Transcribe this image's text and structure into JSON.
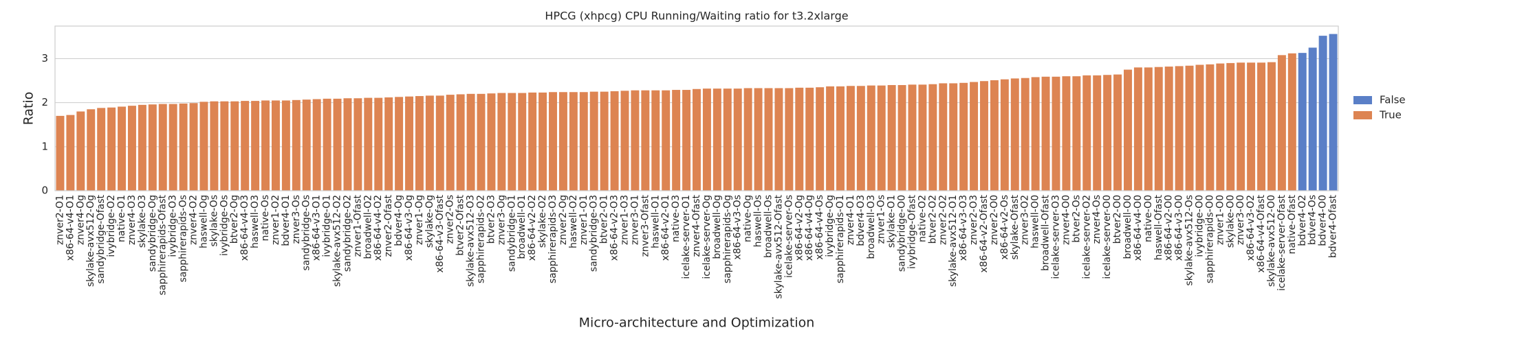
{
  "chart_data": {
    "type": "bar",
    "title": "HPCG (xhpcg) CPU Running/Waiting ratio for t3.2xlarge",
    "x_label": "Micro-architecture and Optimization",
    "y_label": "Ratio",
    "categories": [
      "znver2-O1",
      "x86-64-v4-O1",
      "znver4-Og",
      "skylake-avx512-Og",
      "sandybridge-Ofast",
      "ivybridge-O2",
      "native-O1",
      "znver4-O3",
      "skylake-O3",
      "sandybridge-Og",
      "sapphirerapids-Ofast",
      "ivybridge-O3",
      "sapphirerapids-Os",
      "znver4-O2",
      "haswell-Og",
      "skylake-Os",
      "ivybridge-Os",
      "btver2-Og",
      "x86-64-v4-O3",
      "haswell-O3",
      "native-Os",
      "znver1-O2",
      "bdver4-O1",
      "znver3-Os",
      "sandybridge-Os",
      "x86-64-v3-O1",
      "ivybridge-O1",
      "skylake-avx512-O2",
      "sandybridge-O2",
      "znver1-Ofast",
      "broadwell-O2",
      "x86-64-v4-O2",
      "znver2-Ofast",
      "bdver4-Og",
      "x86-64-v3-Og",
      "znver1-Og",
      "skylake-Og",
      "x86-64-v3-Ofast",
      "znver2-Os",
      "btver2-Ofast",
      "skylake-avx512-O3",
      "sapphirerapids-O2",
      "btver2-O3",
      "znver3-Og",
      "sandybridge-O1",
      "broadwell-O1",
      "x86-64-v2-O2",
      "skylake-O2",
      "sapphirerapids-O3",
      "znver2-Og",
      "haswell-O2",
      "znver1-O1",
      "sandybridge-O3",
      "btver2-O1",
      "x86-64-v2-O3",
      "znver1-O3",
      "znver3-O1",
      "znver3-Ofast",
      "haswell-O1",
      "x86-64-v2-O1",
      "native-O3",
      "icelake-server-O1",
      "znver4-Ofast",
      "icelake-server-Og",
      "broadwell-Og",
      "sapphirerapids-Og",
      "x86-64-v3-Os",
      "native-Og",
      "haswell-Os",
      "broadwell-Os",
      "skylake-avx512-Ofast",
      "icelake-server-Os",
      "x86-64-v2-Og",
      "x86-64-v4-Og",
      "x86-64-v4-Os",
      "ivybridge-Og",
      "sapphirerapids-O1",
      "znver4-O1",
      "bdver4-O3",
      "broadwell-O3",
      "znver1-Os",
      "skylake-O1",
      "sandybridge-O0",
      "ivybridge-Ofast",
      "native-O2",
      "btver2-O2",
      "znver2-O2",
      "skylake-avx512-O1",
      "x86-64-v3-O3",
      "znver2-O3",
      "x86-64-v2-Ofast",
      "znver2-O0",
      "x86-64-v2-Os",
      "skylake-Ofast",
      "znver3-O2",
      "haswell-O0",
      "broadwell-Ofast",
      "icelake-server-O3",
      "znver4-O0",
      "btver2-Os",
      "icelake-server-O2",
      "znver4-Os",
      "icelake-server-O0",
      "btver2-O0",
      "broadwell-O0",
      "x86-64-v4-O0",
      "native-O0",
      "haswell-Ofast",
      "x86-64-v2-O0",
      "x86-64-v3-O0",
      "skylake-avx512-Os",
      "ivybridge-O0",
      "sapphirerapids-O0",
      "znver1-O0",
      "skylake-O0",
      "znver3-O0",
      "x86-64-v3-O2",
      "x86-64-v4-Ofast",
      "skylake-avx512-O0",
      "icelake-server-Ofast",
      "native-Ofast",
      "bdver4-O2",
      "bdver4-Os",
      "bdver4-O0",
      "bdver4-Ofast"
    ],
    "series": [
      {
        "name": "False",
        "color": "#5a7fc7",
        "values": [
          null,
          null,
          null,
          null,
          null,
          null,
          null,
          null,
          null,
          null,
          null,
          null,
          null,
          null,
          null,
          null,
          null,
          null,
          null,
          null,
          null,
          null,
          null,
          null,
          null,
          null,
          null,
          null,
          null,
          null,
          null,
          null,
          null,
          null,
          null,
          null,
          null,
          null,
          null,
          null,
          null,
          null,
          null,
          null,
          null,
          null,
          null,
          null,
          null,
          null,
          null,
          null,
          null,
          null,
          null,
          null,
          null,
          null,
          null,
          null,
          null,
          null,
          null,
          null,
          null,
          null,
          null,
          null,
          null,
          null,
          null,
          null,
          null,
          null,
          null,
          null,
          null,
          null,
          null,
          null,
          null,
          null,
          null,
          null,
          null,
          null,
          null,
          null,
          null,
          null,
          null,
          null,
          null,
          null,
          null,
          null,
          null,
          null,
          null,
          null,
          null,
          null,
          null,
          null,
          null,
          null,
          null,
          null,
          null,
          null,
          null,
          null,
          null,
          null,
          null,
          null,
          null,
          null,
          null,
          null,
          null,
          3.13,
          3.25,
          3.52,
          3.56
        ]
      },
      {
        "name": "True",
        "color": "#dd8452",
        "values": [
          1.7,
          1.72,
          1.8,
          1.85,
          1.88,
          1.89,
          1.91,
          1.93,
          1.95,
          1.96,
          1.97,
          1.97,
          1.98,
          1.99,
          2.02,
          2.03,
          2.03,
          2.03,
          2.04,
          2.04,
          2.05,
          2.05,
          2.05,
          2.06,
          2.07,
          2.08,
          2.09,
          2.09,
          2.1,
          2.1,
          2.11,
          2.11,
          2.12,
          2.13,
          2.14,
          2.15,
          2.16,
          2.16,
          2.18,
          2.19,
          2.2,
          2.2,
          2.21,
          2.22,
          2.22,
          2.22,
          2.23,
          2.23,
          2.24,
          2.24,
          2.24,
          2.24,
          2.25,
          2.25,
          2.26,
          2.27,
          2.28,
          2.28,
          2.28,
          2.28,
          2.29,
          2.29,
          2.31,
          2.32,
          2.32,
          2.32,
          2.32,
          2.33,
          2.33,
          2.33,
          2.33,
          2.33,
          2.34,
          2.34,
          2.35,
          2.37,
          2.37,
          2.38,
          2.38,
          2.39,
          2.39,
          2.4,
          2.4,
          2.41,
          2.41,
          2.42,
          2.44,
          2.44,
          2.45,
          2.47,
          2.49,
          2.51,
          2.53,
          2.55,
          2.56,
          2.58,
          2.59,
          2.59,
          2.6,
          2.6,
          2.62,
          2.62,
          2.63,
          2.64,
          2.75,
          2.8,
          2.8,
          2.81,
          2.82,
          2.83,
          2.84,
          2.86,
          2.87,
          2.89,
          2.9,
          2.91,
          2.91,
          2.91,
          2.92,
          3.08,
          3.12,
          null,
          null,
          null,
          null
        ]
      }
    ],
    "ylim": [
      0,
      3.74
    ],
    "yticks": [
      0,
      1,
      2,
      3
    ],
    "grid": true,
    "legend": "right"
  }
}
